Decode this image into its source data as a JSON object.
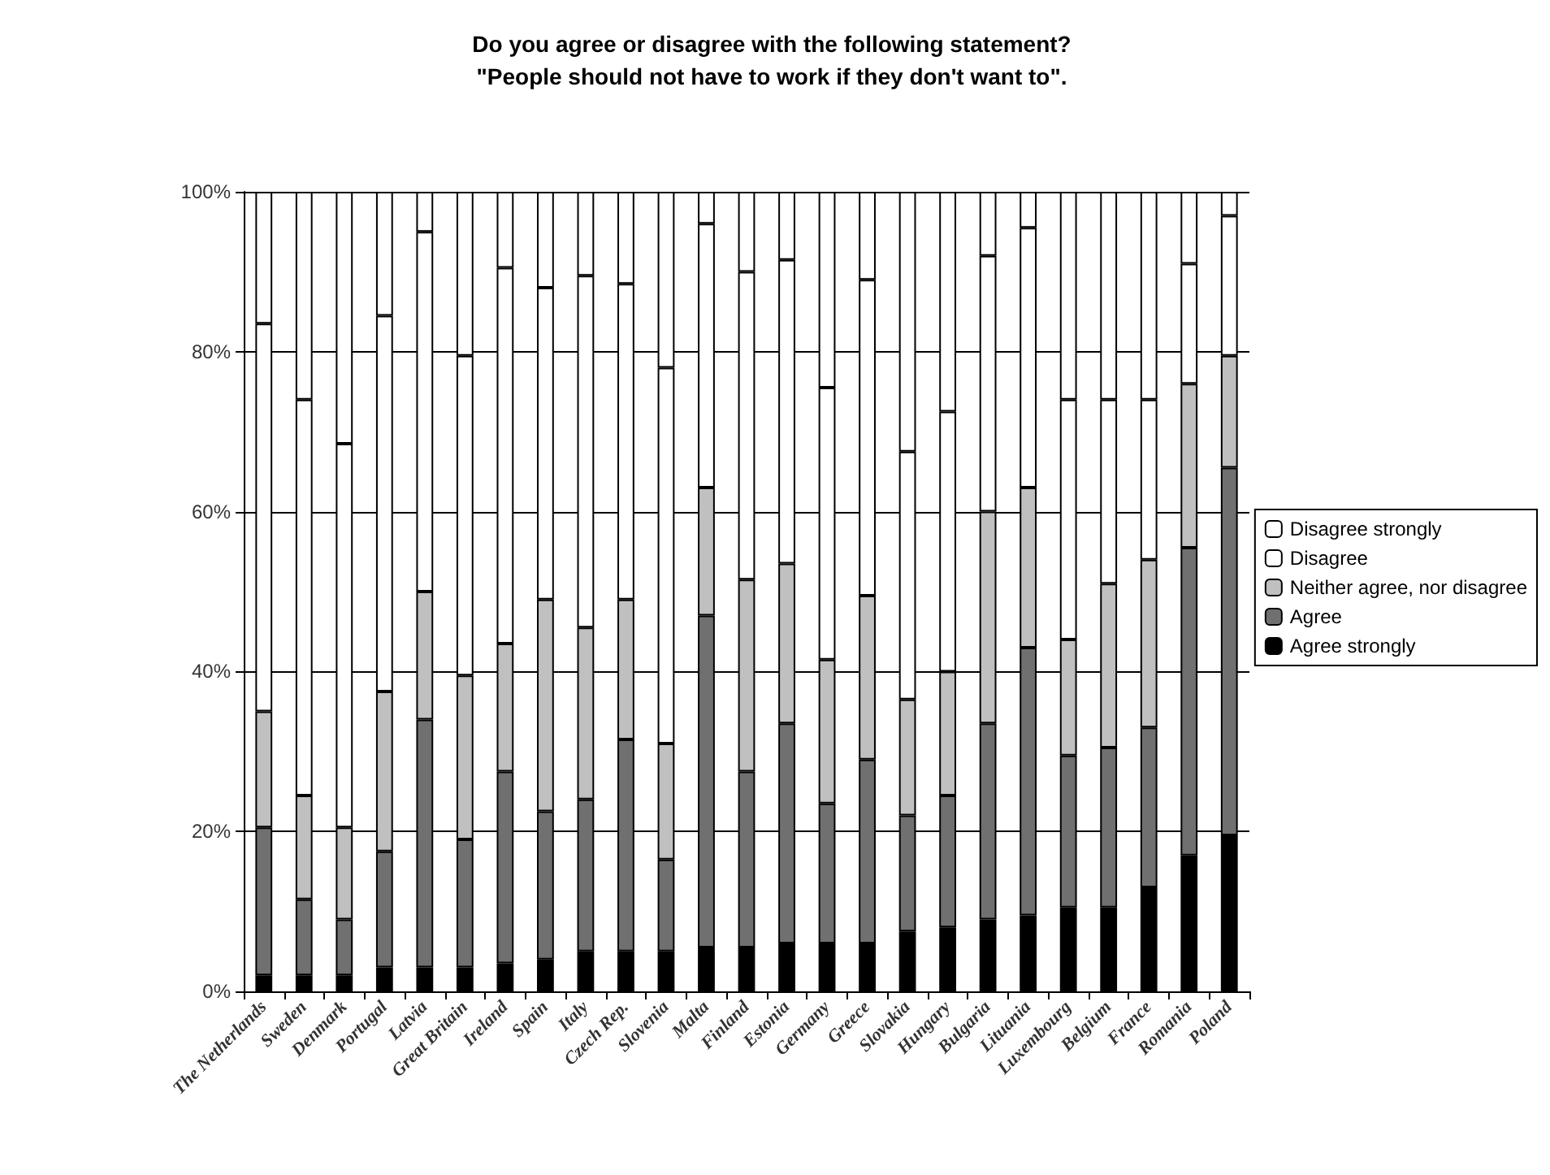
{
  "chart_data": {
    "type": "bar",
    "stacked": true,
    "title": "Do you agree or disagree with the following statement?\n\"People should not have to work if they don't want to\".",
    "categories": [
      "The Netherlands",
      "Sweden",
      "Denmark",
      "Portugal",
      "Latvia",
      "Great Britain",
      "Ireland",
      "Spain",
      "Italy",
      "Czech Rep.",
      "Slovenia",
      "Malta",
      "Finland",
      "Estonia",
      "Germany",
      "Greece",
      "Slovakia",
      "Hungary",
      "Bulgaria",
      "Lituania",
      "Luxembourg",
      "Belgium",
      "France",
      "Romania",
      "Poland"
    ],
    "series": [
      {
        "name": "Agree strongly",
        "color": "#000000",
        "values": [
          2,
          2,
          2,
          3,
          3,
          3,
          3.5,
          4,
          5,
          5,
          5,
          5.5,
          5.5,
          6,
          6,
          6,
          7.5,
          8,
          9,
          9.5,
          10.5,
          10.5,
          13,
          17,
          19.5
        ]
      },
      {
        "name": "Agree",
        "color": "#707070",
        "values": [
          18.5,
          9.5,
          7,
          14.5,
          31,
          16,
          24,
          18.5,
          19,
          26.5,
          11.5,
          41.5,
          22,
          27.5,
          17.5,
          23,
          14.5,
          16.5,
          24.5,
          33.5,
          19,
          20,
          20,
          38.5,
          46
        ]
      },
      {
        "name": "Neither agree, nor disagree",
        "color": "#c0c0c0",
        "values": [
          14.5,
          13,
          11.5,
          20,
          16,
          20.5,
          16,
          26.5,
          21.5,
          17.5,
          14.5,
          16,
          24,
          20,
          18,
          20.5,
          14.5,
          15.5,
          26.5,
          20,
          14.5,
          20.5,
          21,
          20.5,
          14
        ]
      },
      {
        "name": "Disagree",
        "color": "#ffffff",
        "values": [
          48.5,
          49.5,
          48,
          47,
          45,
          40,
          47,
          39,
          44,
          39.5,
          47,
          33,
          38.5,
          38,
          34,
          39.5,
          31,
          32.5,
          32,
          32.5,
          30,
          23,
          20,
          15,
          17.5
        ]
      },
      {
        "name": "Disagree strongly",
        "color": "#ffffff",
        "values": [
          16.5,
          26,
          31.5,
          15.5,
          5,
          20.5,
          9.5,
          12,
          10.5,
          11.5,
          22,
          4,
          10,
          8.5,
          24.5,
          11,
          32.5,
          27.5,
          8,
          4.5,
          26,
          26,
          26,
          9,
          3
        ]
      }
    ],
    "ylim": [
      0,
      100
    ],
    "yticks": [
      {
        "value": 0,
        "label": "0%"
      },
      {
        "value": 20,
        "label": "20%"
      },
      {
        "value": 40,
        "label": "40%"
      },
      {
        "value": 60,
        "label": "60%"
      },
      {
        "value": 80,
        "label": "80%"
      },
      {
        "value": 100,
        "label": "100%"
      }
    ],
    "grid": "y",
    "legend": "right"
  }
}
